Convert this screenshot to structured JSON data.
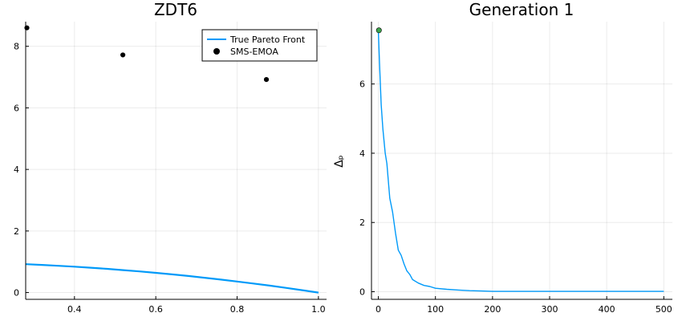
{
  "chart_data": [
    {
      "type": "scatter",
      "title": "ZDT6",
      "xlabel": "",
      "ylabel": "",
      "xlim": [
        0.28,
        1.02
      ],
      "ylim": [
        -0.22,
        8.8
      ],
      "x_ticks": [
        0.4,
        0.6,
        0.8,
        1.0
      ],
      "x_tick_labels": [
        "0.4",
        "0.6",
        "0.8",
        "1.0"
      ],
      "y_ticks": [
        0,
        2,
        4,
        6,
        8
      ],
      "y_tick_labels": [
        "0",
        "2",
        "4",
        "6",
        "8"
      ],
      "grid": true,
      "legend": "top-right",
      "series": [
        {
          "name": "True Pareto Front",
          "kind": "line",
          "color": "#009af9",
          "x": [
            0.2807753,
            0.32,
            0.36,
            0.4,
            0.44,
            0.48,
            0.52,
            0.56,
            0.6,
            0.64,
            0.68,
            0.72,
            0.76,
            0.8,
            0.84,
            0.88,
            0.92,
            0.96,
            1.0
          ],
          "y": [
            0.9212,
            0.8976,
            0.8704,
            0.84,
            0.8064,
            0.7696,
            0.7296,
            0.6864,
            0.64,
            0.5904,
            0.5376,
            0.4816,
            0.4224,
            0.36,
            0.2944,
            0.2256,
            0.1536,
            0.0784,
            0.0
          ]
        },
        {
          "name": "SMS-EMOA",
          "kind": "scatter",
          "color": "#000000",
          "x": [
            0.283,
            0.519,
            0.872
          ],
          "y": [
            8.6,
            7.72,
            6.92
          ]
        }
      ]
    },
    {
      "type": "line",
      "title": "Generation 1",
      "xlabel": "",
      "ylabel": "Δₚ",
      "xlim": [
        -12,
        515
      ],
      "ylim": [
        -0.22,
        7.8
      ],
      "x_ticks": [
        0,
        100,
        200,
        300,
        400,
        500
      ],
      "x_tick_labels": [
        "0",
        "100",
        "200",
        "300",
        "400",
        "500"
      ],
      "y_ticks": [
        0,
        2,
        4,
        6
      ],
      "y_tick_labels": [
        "0",
        "2",
        "4",
        "6"
      ],
      "grid": true,
      "series": [
        {
          "name": "",
          "kind": "line",
          "color": "#009af9",
          "x": [
            0,
            2,
            5,
            8,
            12,
            15,
            20,
            25,
            30,
            35,
            40,
            45,
            50,
            55,
            60,
            70,
            80,
            90,
            100,
            120,
            140,
            160,
            180,
            200,
            250,
            300,
            400,
            500
          ],
          "y": [
            7.55,
            6.6,
            5.4,
            4.7,
            4.0,
            3.7,
            2.7,
            2.3,
            1.7,
            1.2,
            1.05,
            0.8,
            0.6,
            0.5,
            0.35,
            0.25,
            0.18,
            0.15,
            0.1,
            0.07,
            0.05,
            0.03,
            0.02,
            0.01,
            0.01,
            0.01,
            0.01,
            0.01
          ]
        },
        {
          "name": "",
          "kind": "scatter",
          "color": "#3da44d",
          "x": [
            1
          ],
          "y": [
            7.55
          ]
        }
      ]
    }
  ]
}
